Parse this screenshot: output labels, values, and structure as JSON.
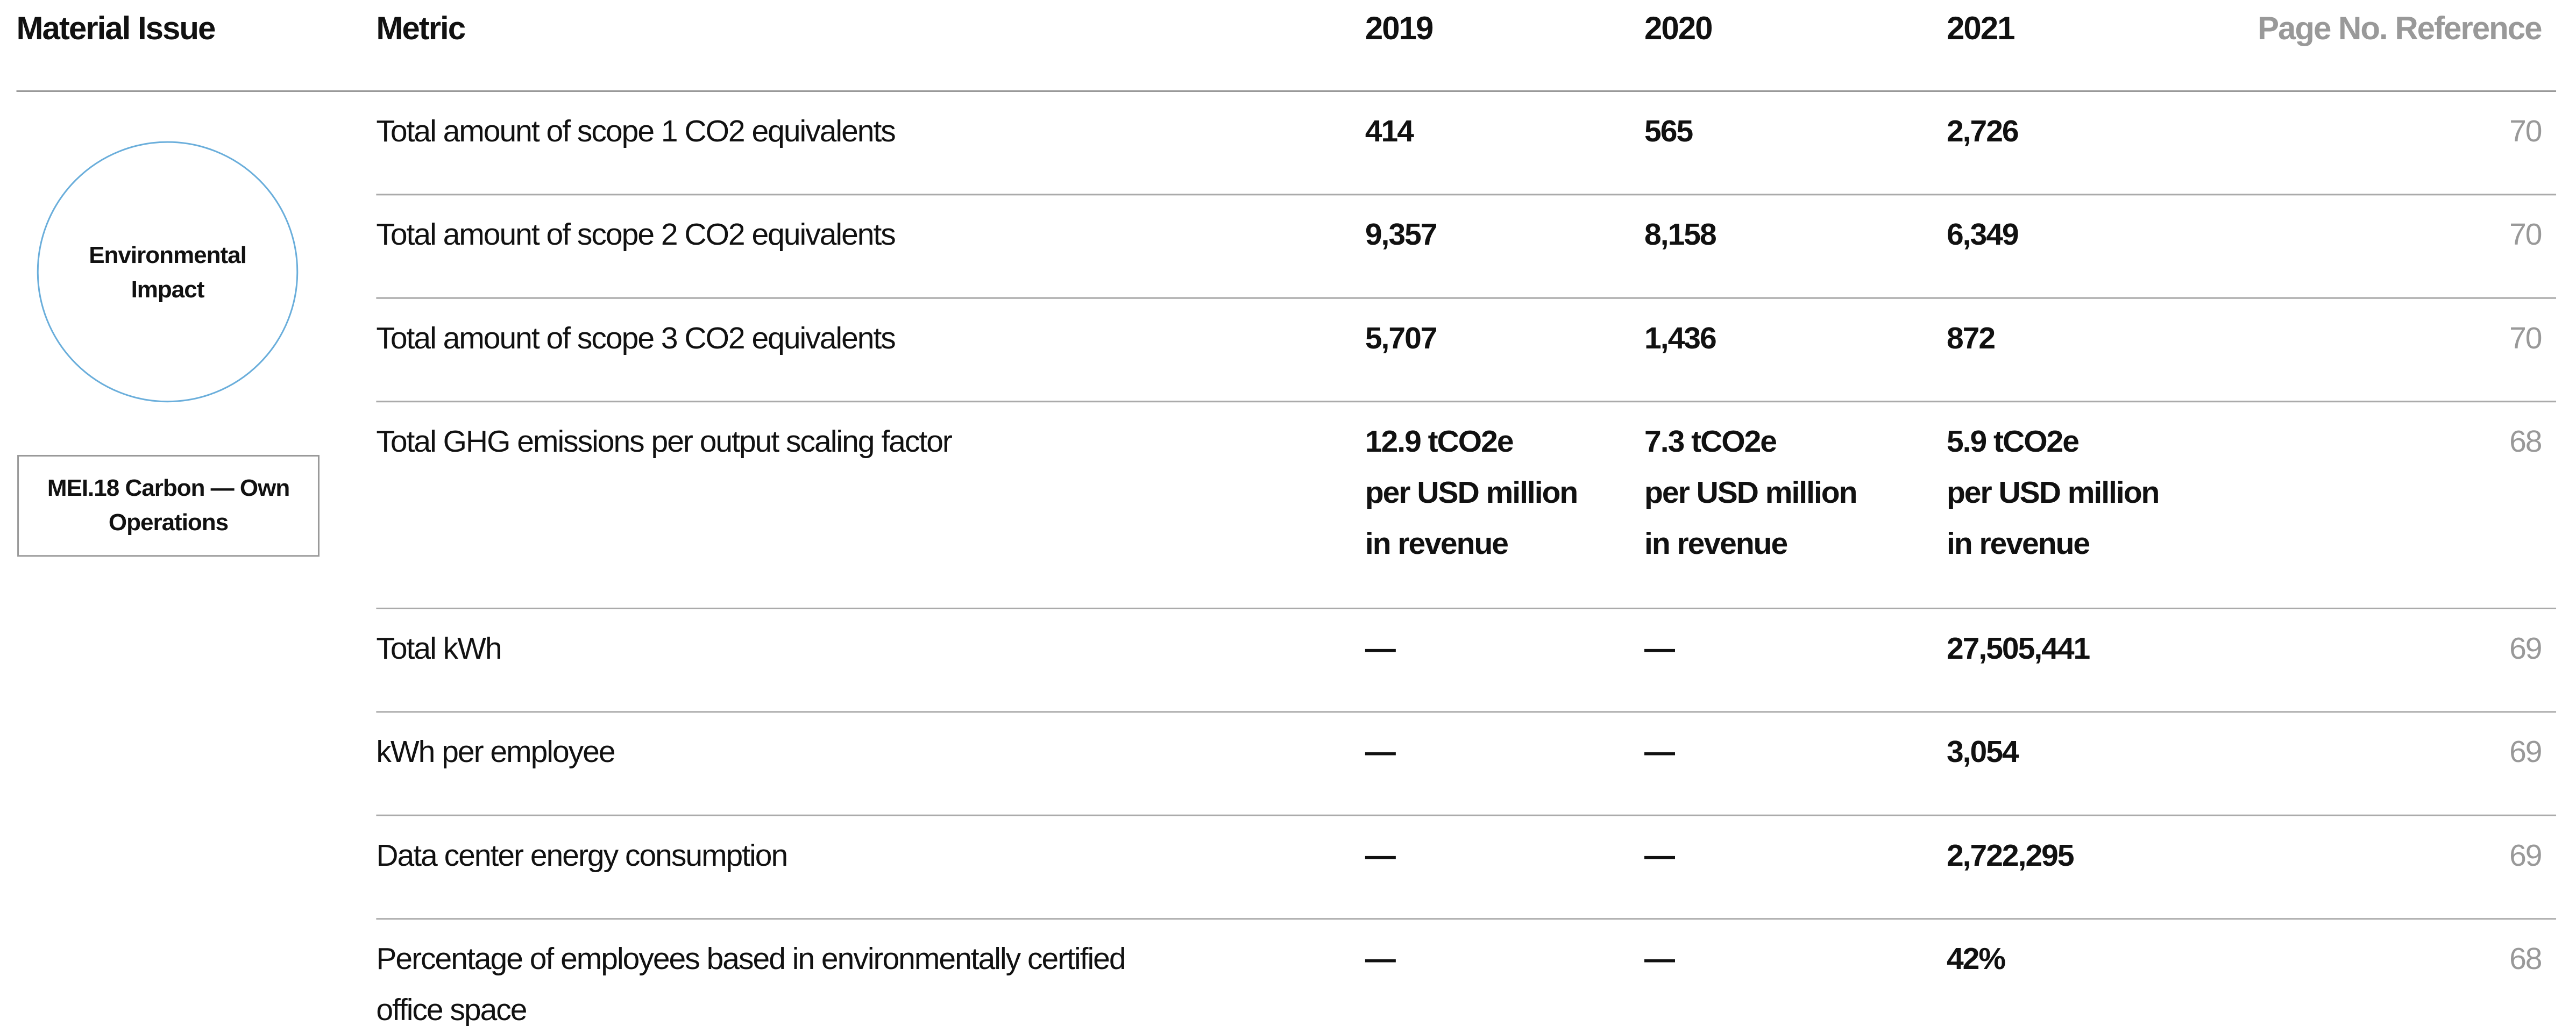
{
  "header": {
    "columns": [
      "Material Issue",
      "Metric",
      "2019",
      "2020",
      "2021",
      "Page No. Reference"
    ]
  },
  "material_issue": {
    "category": "Environmental Impact",
    "code": "MEI.18 Carbon — Own Operations"
  },
  "table": {
    "rows": [
      [
        "Total amount of scope 1 CO2 equivalents",
        "414",
        "565",
        "2,726",
        "70"
      ],
      [
        "Total amount of scope 2 CO2 equivalents",
        "9,357",
        "8,158",
        "6,349",
        "70"
      ],
      [
        "Total amount of scope 3 CO2 equivalents",
        "5,707",
        "1,436",
        "872",
        "70"
      ],
      [
        "Total GHG emissions per output scaling factor",
        "12.9 tCO2e\nper USD million\nin revenue",
        "7.3 tCO2e\nper USD million\nin revenue",
        "5.9 tCO2e\nper USD million\nin revenue",
        "68"
      ],
      [
        "Total kWh",
        "—",
        "—",
        "27,505,441",
        "69"
      ],
      [
        "kWh per employee",
        "—",
        "—",
        "3,054",
        "69"
      ],
      [
        "Data center energy consumption",
        "—",
        "—",
        "2,722,295",
        "69"
      ],
      [
        "Percentage of employees based in environmentally certified office space",
        "—",
        "—",
        "42%",
        "68"
      ]
    ]
  }
}
